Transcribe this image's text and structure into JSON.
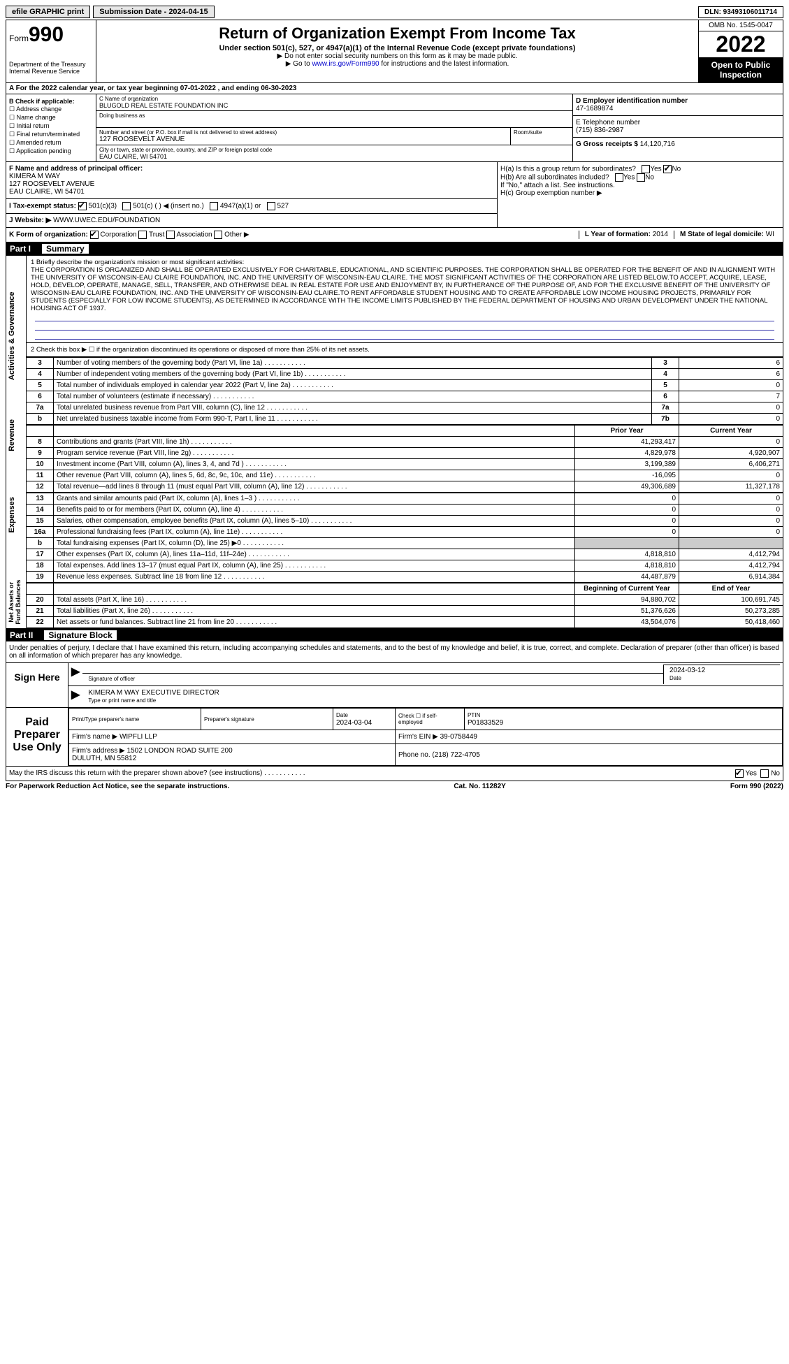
{
  "top": {
    "efile": "efile GRAPHIC print",
    "submission": "Submission Date - 2024-04-15",
    "dln": "DLN: 93493106011714"
  },
  "header": {
    "form_prefix": "Form",
    "form_num": "990",
    "dept": "Department of the Treasury\nInternal Revenue Service",
    "title": "Return of Organization Exempt From Income Tax",
    "sub": "Under section 501(c), 527, or 4947(a)(1) of the Internal Revenue Code (except private foundations)",
    "note1": "▶ Do not enter social security numbers on this form as it may be made public.",
    "note2_pre": "▶ Go to ",
    "note2_link": "www.irs.gov/Form990",
    "note2_post": " for instructions and the latest information.",
    "omb": "OMB No. 1545-0047",
    "year": "2022",
    "inspection": "Open to Public Inspection"
  },
  "rowA": "A For the 2022 calendar year, or tax year beginning 07-01-2022   , and ending 06-30-2023",
  "colB": {
    "title": "B Check if applicable:",
    "items": [
      "Address change",
      "Name change",
      "Initial return",
      "Final return/terminated",
      "Amended return",
      "Application pending"
    ]
  },
  "colC": {
    "c_label": "C Name of organization",
    "c_name": "BLUGOLD REAL ESTATE FOUNDATION INC",
    "dba": "Doing business as",
    "addr_label": "Number and street (or P.O. box if mail is not delivered to street address)",
    "addr": "127 ROOSEVELT AVENUE",
    "room": "Room/suite",
    "city_label": "City or town, state or province, country, and ZIP or foreign postal code",
    "city": "EAU CLAIRE, WI  54701"
  },
  "colD": {
    "d_label": "D Employer identification number",
    "d_val": "47-1689874",
    "e_label": "E Telephone number",
    "e_val": "(715) 836-2987",
    "g_label": "G Gross receipts $",
    "g_val": "14,120,716"
  },
  "f": {
    "label": "F  Name and address of principal officer:",
    "name": "KIMERA M WAY",
    "addr1": "127 ROOSEVELT AVENUE",
    "addr2": "EAU CLAIRE, WI  54701"
  },
  "h": {
    "a": "H(a)  Is this a group return for subordinates?",
    "b": "H(b)  Are all subordinates included?",
    "b_note": "If \"No,\" attach a list. See instructions.",
    "c": "H(c)  Group exemption number ▶",
    "yes": "Yes",
    "no": "No"
  },
  "i": {
    "label": "I  Tax-exempt status:",
    "opts": [
      "501(c)(3)",
      "501(c) (  ) ◀ (insert no.)",
      "4947(a)(1) or",
      "527"
    ]
  },
  "j": {
    "label": "J Website: ▶",
    "val": "WWW.UWEC.EDU/FOUNDATION"
  },
  "k": {
    "label": "K Form of organization:",
    "opts": [
      "Corporation",
      "Trust",
      "Association",
      "Other ▶"
    ]
  },
  "l": {
    "label": "L Year of formation:",
    "val": "2014"
  },
  "m": {
    "label": "M State of legal domicile:",
    "val": "WI"
  },
  "part1": {
    "label": "Part I",
    "title": "Summary",
    "side1": "Activities & Governance",
    "side2": "Revenue",
    "side3": "Expenses",
    "side4": "Net Assets or Fund Balances",
    "line1_label": "1  Briefly describe the organization's mission or most significant activities:",
    "mission": "THE CORPORATION IS ORGANIZED AND SHALL BE OPERATED EXCLUSIVELY FOR CHARITABLE, EDUCATIONAL, AND SCIENTIFIC PURPOSES. THE CORPORATION SHALL BE OPERATED FOR THE BENEFIT OF AND IN ALIGNMENT WITH THE UNIVERSITY OF WISCONSIN-EAU CLAIRE FOUNDATION, INC. AND THE UNIVERSITY OF WISCONSIN-EAU CLAIRE. THE MOST SIGNIFICANT ACTIVITIES OF THE CORPORATION ARE LISTED BELOW.TO ACCEPT, ACQUIRE, LEASE, HOLD, DEVELOP, OPERATE, MANAGE, SELL, TRANSFER, AND OTHERWISE DEAL IN REAL ESTATE FOR USE AND ENJOYMENT BY, IN FURTHERANCE OF THE PURPOSE OF, AND FOR THE EXCLUSIVE BENEFIT OF THE UNIVERSITY OF WISCONSIN-EAU CLAIRE FOUNDATION, INC. AND THE UNIVERSITY OF WISCONSIN-EAU CLAIRE.TO RENT AFFORDABLE STUDENT HOUSING AND TO CREATE AFFORDABLE LOW INCOME HOUSING PROJECTS, PRIMARILY FOR STUDENTS (ESPECIALLY FOR LOW INCOME STUDENTS), AS DETERMINED IN ACCORDANCE WITH THE INCOME LIMITS PUBLISHED BY THE FEDERAL DEPARTMENT OF HOUSING AND URBAN DEVELOPMENT UNDER THE NATIONAL HOUSING ACT OF 1937.",
    "line2": "2  Check this box ▶ ☐ if the organization discontinued its operations or disposed of more than 25% of its net assets.",
    "rows_gov": [
      {
        "n": "3",
        "d": "Number of voting members of the governing body (Part VI, line 1a)",
        "k": "3",
        "v": "6"
      },
      {
        "n": "4",
        "d": "Number of independent voting members of the governing body (Part VI, line 1b)",
        "k": "4",
        "v": "6"
      },
      {
        "n": "5",
        "d": "Total number of individuals employed in calendar year 2022 (Part V, line 2a)",
        "k": "5",
        "v": "0"
      },
      {
        "n": "6",
        "d": "Total number of volunteers (estimate if necessary)",
        "k": "6",
        "v": "7"
      },
      {
        "n": "7a",
        "d": "Total unrelated business revenue from Part VIII, column (C), line 12",
        "k": "7a",
        "v": "0"
      },
      {
        "n": "b",
        "d": "Net unrelated business taxable income from Form 990-T, Part I, line 11",
        "k": "7b",
        "v": "0"
      }
    ],
    "col_prior": "Prior Year",
    "col_current": "Current Year",
    "rows_rev": [
      {
        "n": "8",
        "d": "Contributions and grants (Part VIII, line 1h)",
        "p": "41,293,417",
        "c": "0"
      },
      {
        "n": "9",
        "d": "Program service revenue (Part VIII, line 2g)",
        "p": "4,829,978",
        "c": "4,920,907"
      },
      {
        "n": "10",
        "d": "Investment income (Part VIII, column (A), lines 3, 4, and 7d )",
        "p": "3,199,389",
        "c": "6,406,271"
      },
      {
        "n": "11",
        "d": "Other revenue (Part VIII, column (A), lines 5, 6d, 8c, 9c, 10c, and 11e)",
        "p": "-16,095",
        "c": "0"
      },
      {
        "n": "12",
        "d": "Total revenue—add lines 8 through 11 (must equal Part VIII, column (A), line 12)",
        "p": "49,306,689",
        "c": "11,327,178"
      }
    ],
    "rows_exp": [
      {
        "n": "13",
        "d": "Grants and similar amounts paid (Part IX, column (A), lines 1–3 )",
        "p": "0",
        "c": "0"
      },
      {
        "n": "14",
        "d": "Benefits paid to or for members (Part IX, column (A), line 4)",
        "p": "0",
        "c": "0"
      },
      {
        "n": "15",
        "d": "Salaries, other compensation, employee benefits (Part IX, column (A), lines 5–10)",
        "p": "0",
        "c": "0"
      },
      {
        "n": "16a",
        "d": "Professional fundraising fees (Part IX, column (A), line 11e)",
        "p": "0",
        "c": "0"
      },
      {
        "n": "b",
        "d": "Total fundraising expenses (Part IX, column (D), line 25) ▶0",
        "p": "",
        "c": "",
        "shaded": true
      },
      {
        "n": "17",
        "d": "Other expenses (Part IX, column (A), lines 11a–11d, 11f–24e)",
        "p": "4,818,810",
        "c": "4,412,794"
      },
      {
        "n": "18",
        "d": "Total expenses. Add lines 13–17 (must equal Part IX, column (A), line 25)",
        "p": "4,818,810",
        "c": "4,412,794"
      },
      {
        "n": "19",
        "d": "Revenue less expenses. Subtract line 18 from line 12",
        "p": "44,487,879",
        "c": "6,914,384"
      }
    ],
    "col_begin": "Beginning of Current Year",
    "col_end": "End of Year",
    "rows_net": [
      {
        "n": "20",
        "d": "Total assets (Part X, line 16)",
        "p": "94,880,702",
        "c": "100,691,745"
      },
      {
        "n": "21",
        "d": "Total liabilities (Part X, line 26)",
        "p": "51,376,626",
        "c": "50,273,285"
      },
      {
        "n": "22",
        "d": "Net assets or fund balances. Subtract line 21 from line 20",
        "p": "43,504,076",
        "c": "50,418,460"
      }
    ]
  },
  "part2": {
    "label": "Part II",
    "title": "Signature Block",
    "penalty": "Under penalties of perjury, I declare that I have examined this return, including accompanying schedules and statements, and to the best of my knowledge and belief, it is true, correct, and complete. Declaration of preparer (other than officer) is based on all information of which preparer has any knowledge.",
    "sign_here": "Sign Here",
    "sig_officer": "Signature of officer",
    "sig_date": "2024-03-12",
    "date_label": "Date",
    "officer_name": "KIMERA M WAY  EXECUTIVE DIRECTOR",
    "type_name": "Type or print name and title",
    "paid": "Paid Preparer Use Only",
    "prep_name_label": "Print/Type preparer's name",
    "prep_sig_label": "Preparer's signature",
    "prep_date": "2024-03-04",
    "check_self": "Check ☐ if self-employed",
    "ptin_label": "PTIN",
    "ptin": "P01833529",
    "firm_name_label": "Firm's name    ▶",
    "firm_name": "WIPFLI LLP",
    "firm_ein_label": "Firm's EIN ▶",
    "firm_ein": "39-0758449",
    "firm_addr_label": "Firm's address ▶",
    "firm_addr": "1502 LONDON ROAD SUITE 200\nDULUTH, MN  55812",
    "phone_label": "Phone no.",
    "phone": "(218) 722-4705",
    "may_discuss": "May the IRS discuss this return with the preparer shown above? (see instructions)",
    "yes": "Yes",
    "no": "No"
  },
  "footer": {
    "left": "For Paperwork Reduction Act Notice, see the separate instructions.",
    "mid": "Cat. No. 11282Y",
    "right": "Form 990 (2022)"
  }
}
